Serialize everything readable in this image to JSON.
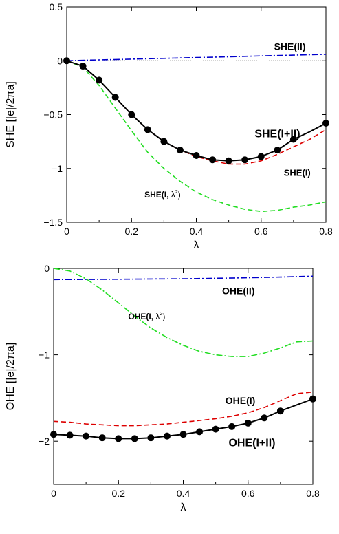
{
  "chart_data": [
    {
      "type": "line",
      "xlabel": "λ",
      "ylabel": "SHE [|e|/2πa]",
      "xlim": [
        0,
        0.8
      ],
      "ylim": [
        -1.5,
        0.5
      ],
      "xticks": [
        "0",
        "0.2",
        "0.4",
        "0.6",
        "0.8"
      ],
      "yticks": [
        "0.5",
        "0",
        "-0.5",
        "-1",
        "-1.5"
      ],
      "zero_line": true,
      "grid": false,
      "series": [
        {
          "name": "SHE(II)",
          "style": "dash-dot",
          "color": "#0000cc",
          "x": [
            0,
            0.1,
            0.2,
            0.3,
            0.4,
            0.5,
            0.6,
            0.7,
            0.8
          ],
          "y": [
            0,
            0.008,
            0.015,
            0.022,
            0.03,
            0.037,
            0.045,
            0.052,
            0.06
          ]
        },
        {
          "name": "SHE(I, λ²)",
          "style": "dashed",
          "color": "#22dd22",
          "x": [
            0,
            0.05,
            0.1,
            0.15,
            0.2,
            0.25,
            0.3,
            0.35,
            0.4,
            0.45,
            0.5,
            0.55,
            0.6,
            0.65,
            0.7,
            0.75,
            0.8
          ],
          "y": [
            0,
            -0.06,
            -0.23,
            -0.44,
            -0.65,
            -0.85,
            -1.0,
            -1.12,
            -1.22,
            -1.29,
            -1.34,
            -1.38,
            -1.4,
            -1.39,
            -1.36,
            -1.34,
            -1.31
          ]
        },
        {
          "name": "SHE(I)",
          "style": "dashed",
          "color": "#dd0000",
          "x": [
            0,
            0.05,
            0.1,
            0.15,
            0.2,
            0.25,
            0.3,
            0.35,
            0.4,
            0.45,
            0.5,
            0.55,
            0.6,
            0.65,
            0.7,
            0.75,
            0.8
          ],
          "y": [
            0,
            -0.05,
            -0.18,
            -0.34,
            -0.5,
            -0.64,
            -0.75,
            -0.83,
            -0.89,
            -0.93,
            -0.96,
            -0.96,
            -0.93,
            -0.87,
            -0.8,
            -0.73,
            -0.64
          ]
        },
        {
          "name": "SHE(I+II)",
          "style": "solid-markers",
          "color": "#000000",
          "x": [
            0,
            0.05,
            0.1,
            0.15,
            0.2,
            0.25,
            0.3,
            0.35,
            0.4,
            0.45,
            0.5,
            0.55,
            0.6,
            0.65,
            0.7,
            0.75,
            0.8
          ],
          "y": [
            0,
            -0.05,
            -0.18,
            -0.34,
            -0.5,
            -0.64,
            -0.75,
            -0.83,
            -0.88,
            -0.92,
            -0.93,
            -0.92,
            -0.89,
            -0.83,
            -0.73,
            -0.66,
            -0.58
          ],
          "markers": [
            0,
            1,
            2,
            3,
            4,
            5,
            6,
            7,
            8,
            9,
            10,
            11,
            12,
            13,
            14,
            16
          ]
        }
      ],
      "annotations": [
        {
          "text": "SHE(II)",
          "x": 0.64,
          "y": 0.1,
          "size": 14
        },
        {
          "text": "SHE(I+II)",
          "x": 0.58,
          "y": -0.71,
          "size": 16
        },
        {
          "text": "SHE(I)",
          "x": 0.67,
          "y": -1.07,
          "size": 13
        },
        {
          "text": "SHE(I, ",
          "sup": "λ",
          "sup2": "2",
          "x": 0.24,
          "y": -1.27,
          "size": 12
        }
      ]
    },
    {
      "type": "line",
      "xlabel": "λ",
      "ylabel": "OHE [|e|/2πa]",
      "xlim": [
        0,
        0.8
      ],
      "ylim": [
        -2.5,
        0
      ],
      "xticks": [
        "0",
        "0.2",
        "0.4",
        "0.6",
        "0.8"
      ],
      "yticks": [
        "0",
        "-1",
        "-2"
      ],
      "grid": false,
      "series": [
        {
          "name": "OHE(II)",
          "style": "dash-dot",
          "color": "#0000cc",
          "x": [
            0,
            0.1,
            0.2,
            0.3,
            0.4,
            0.5,
            0.6,
            0.7,
            0.8
          ],
          "y": [
            -0.13,
            -0.128,
            -0.126,
            -0.123,
            -0.12,
            -0.115,
            -0.108,
            -0.1,
            -0.09
          ]
        },
        {
          "name": "OHE(I, λ²)",
          "style": "dash-dot",
          "color": "#22dd22",
          "x": [
            0,
            0.05,
            0.1,
            0.15,
            0.2,
            0.25,
            0.3,
            0.35,
            0.4,
            0.45,
            0.5,
            0.55,
            0.6,
            0.65,
            0.7,
            0.75,
            0.8
          ],
          "y": [
            0,
            -0.03,
            -0.12,
            -0.25,
            -0.4,
            -0.55,
            -0.69,
            -0.8,
            -0.89,
            -0.96,
            -1.0,
            -1.02,
            -1.02,
            -0.98,
            -0.92,
            -0.85,
            -0.84
          ]
        },
        {
          "name": "OHE(I)",
          "style": "dashed",
          "color": "#dd0000",
          "x": [
            0,
            0.05,
            0.1,
            0.15,
            0.2,
            0.25,
            0.3,
            0.35,
            0.4,
            0.45,
            0.5,
            0.55,
            0.6,
            0.65,
            0.7,
            0.75,
            0.8
          ],
          "y": [
            -1.77,
            -1.78,
            -1.8,
            -1.81,
            -1.82,
            -1.82,
            -1.81,
            -1.8,
            -1.78,
            -1.76,
            -1.74,
            -1.71,
            -1.67,
            -1.61,
            -1.53,
            -1.45,
            -1.43
          ]
        },
        {
          "name": "OHE(I+II)",
          "style": "solid-markers",
          "color": "#000000",
          "x": [
            0,
            0.05,
            0.1,
            0.15,
            0.2,
            0.25,
            0.3,
            0.35,
            0.4,
            0.45,
            0.5,
            0.55,
            0.6,
            0.65,
            0.7,
            0.75,
            0.8
          ],
          "y": [
            -1.92,
            -1.93,
            -1.94,
            -1.96,
            -1.97,
            -1.97,
            -1.96,
            -1.94,
            -1.92,
            -1.89,
            -1.86,
            -1.83,
            -1.79,
            -1.73,
            -1.65,
            -1.58,
            -1.51
          ],
          "markers": [
            0,
            1,
            2,
            3,
            4,
            5,
            6,
            7,
            8,
            9,
            10,
            11,
            12,
            13,
            14,
            16
          ]
        }
      ],
      "annotations": [
        {
          "text": "OHE(II)",
          "x": 0.52,
          "y": -0.3,
          "size": 14
        },
        {
          "text": "OHE(I, ",
          "sup": "λ",
          "sup2": "2",
          "x": 0.23,
          "y": -0.59,
          "size": 12
        },
        {
          "text": "OHE(I)",
          "x": 0.53,
          "y": -1.57,
          "size": 14
        },
        {
          "text": "OHE(I+II)",
          "x": 0.54,
          "y": -2.06,
          "size": 16
        }
      ]
    }
  ]
}
